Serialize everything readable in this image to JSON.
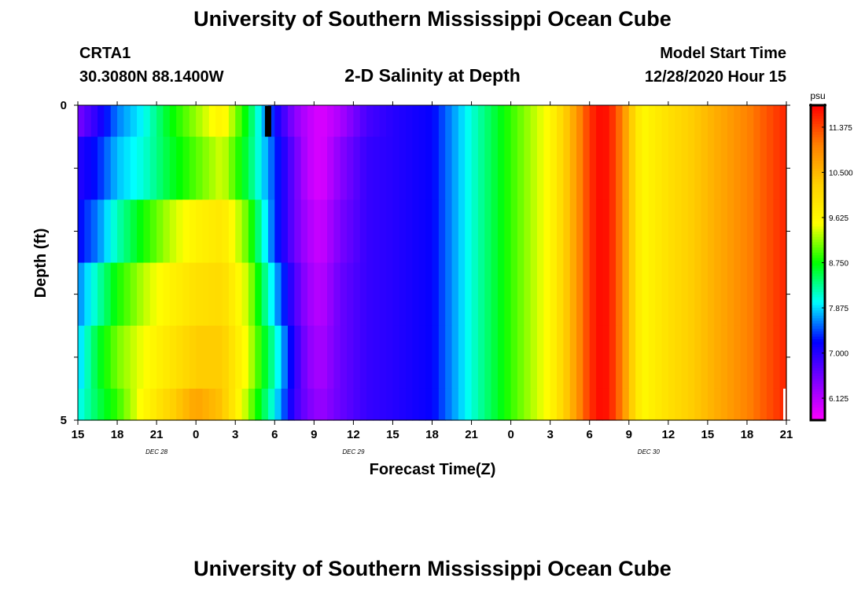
{
  "header": {
    "title": "University of Southern Mississippi Ocean Cube",
    "station": "CRTA1",
    "coords": "30.3080N 88.1400W",
    "subtitle": "2-D Salinity at Depth",
    "start_label": "Model Start Time",
    "start_value": "12/28/2020 Hour 15"
  },
  "footer": {
    "title": "University of Southern Mississippi Ocean Cube"
  },
  "colors": {
    "palette": [
      "#ff00ff",
      "#8000ff",
      "#0000ff",
      "#00ffff",
      "#00ff00",
      "#ffff00",
      "#ffd000",
      "#ff8000",
      "#ff0000"
    ]
  },
  "chart_data": {
    "type": "heatmap",
    "xlabel": "Forecast Time(Z)",
    "ylabel": "Depth (ft)",
    "colorbar_unit": "psu",
    "colorbar_ticks": [
      6.125,
      7.0,
      7.875,
      8.75,
      9.625,
      10.5,
      11.375
    ],
    "colorbar_tick_labels": [
      "6.125",
      "7.000",
      "7.875",
      "8.750",
      "9.625",
      "10.500",
      "11.375"
    ],
    "vrange": [
      5.7,
      11.8
    ],
    "x_tick_labels": [
      "15",
      "18",
      "21",
      "0",
      "3",
      "6",
      "9",
      "12",
      "15",
      "18",
      "21",
      "0",
      "3",
      "6",
      "9",
      "12",
      "15",
      "18",
      "21"
    ],
    "date_labels": [
      {
        "text": "DEC  28",
        "hour": 6
      },
      {
        "text": "DEC  29",
        "hour": 21
      },
      {
        "text": "DEC  30",
        "hour": 43.5
      }
    ],
    "y_tick_labels": [
      "0",
      "5"
    ],
    "ylim": [
      0,
      5
    ],
    "xlim_hours": [
      0,
      54
    ],
    "depth_layers_ft": [
      0,
      0.5,
      1.5,
      2.5,
      3.5,
      4.5
    ],
    "profile_hours": [
      0,
      1.5,
      3,
      5,
      7,
      9,
      11,
      13,
      15,
      16.5,
      17.5,
      18.5,
      20,
      22,
      24,
      27,
      30,
      33,
      36,
      37,
      38,
      39,
      40,
      41,
      43,
      45,
      48,
      51,
      54
    ],
    "layer_profiles": [
      [
        6.5,
        7.0,
        7.6,
        8.0,
        8.7,
        9.2,
        9.7,
        8.6,
        7.2,
        6.4,
        6.1,
        5.9,
        6.2,
        6.8,
        7.0,
        7.2,
        8.1,
        8.9,
        9.6,
        10.2,
        10.8,
        11.5,
        11.8,
        11.4,
        9.6,
        10.0,
        10.5,
        11.0,
        11.6
      ],
      [
        7.0,
        7.3,
        7.8,
        8.1,
        8.6,
        9.0,
        9.4,
        8.5,
        7.4,
        6.6,
        6.1,
        5.9,
        6.4,
        6.9,
        7.0,
        7.2,
        8.1,
        8.9,
        9.6,
        10.2,
        10.8,
        11.5,
        11.8,
        11.4,
        9.6,
        10.0,
        10.5,
        11.0,
        11.6
      ],
      [
        7.2,
        7.6,
        8.2,
        8.8,
        9.3,
        9.7,
        9.9,
        9.0,
        7.4,
        6.6,
        6.2,
        6.0,
        6.5,
        6.9,
        7.0,
        7.2,
        8.1,
        8.9,
        9.6,
        10.2,
        10.8,
        11.5,
        11.8,
        11.4,
        9.6,
        10.0,
        10.5,
        11.0,
        11.6
      ],
      [
        7.6,
        8.2,
        8.8,
        9.3,
        9.7,
        10.0,
        10.1,
        9.3,
        7.8,
        6.8,
        6.3,
        6.1,
        6.6,
        6.9,
        7.0,
        7.2,
        8.1,
        8.9,
        9.6,
        10.2,
        10.8,
        11.5,
        11.8,
        11.4,
        9.6,
        10.0,
        10.5,
        11.0,
        11.6
      ],
      [
        7.8,
        8.6,
        9.1,
        9.5,
        9.9,
        10.3,
        10.3,
        9.4,
        8.2,
        7.0,
        6.4,
        6.2,
        6.6,
        6.9,
        7.0,
        7.2,
        8.1,
        8.9,
        9.6,
        10.2,
        10.8,
        11.5,
        11.8,
        11.4,
        9.6,
        10.0,
        10.5,
        11.0,
        11.6
      ],
      [
        8.0,
        8.5,
        8.9,
        9.6,
        10.2,
        10.7,
        10.4,
        9.2,
        8.0,
        6.9,
        6.5,
        6.3,
        6.6,
        6.9,
        7.0,
        7.2,
        8.1,
        8.9,
        9.6,
        10.2,
        10.8,
        11.5,
        11.8,
        11.4,
        9.6,
        10.0,
        10.5,
        11.0,
        11.6
      ]
    ]
  }
}
